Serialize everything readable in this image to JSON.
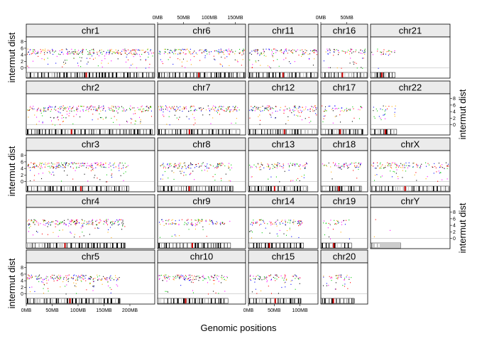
{
  "chart_data": {
    "type": "scatter",
    "title": "",
    "xlabel": "Genomic positions",
    "ylabel": "intermut dist",
    "y_ticks": [
      0,
      2,
      4,
      6,
      8
    ],
    "ylim": [
      -0.5,
      9
    ],
    "x_tick_sets": {
      "chr1": [
        "0MB",
        "50MB",
        "100MB",
        "150MB",
        "200MB"
      ],
      "chr6": [
        "0MB",
        "50MB",
        "100MB",
        "150MB"
      ],
      "chr11": [
        "0MB",
        "50MB",
        "100MB"
      ],
      "chr16": [
        "0MB",
        "50MB"
      ]
    },
    "series_colors": [
      "#ff0000",
      "#00cc00",
      "#0000ff",
      "#ff00ff",
      "#ffaa00",
      "#000000"
    ],
    "panels": [
      {
        "name": "chr1",
        "length_mb": 249,
        "density": 1.0
      },
      {
        "name": "chr6",
        "length_mb": 171,
        "density": 0.9
      },
      {
        "name": "chr11",
        "length_mb": 135,
        "density": 0.9
      },
      {
        "name": "chr16",
        "length_mb": 90,
        "density": 0.7
      },
      {
        "name": "chr21",
        "length_mb": 48,
        "density": 0.5
      },
      {
        "name": "chr2",
        "length_mb": 243,
        "density": 1.0
      },
      {
        "name": "chr7",
        "length_mb": 159,
        "density": 0.9
      },
      {
        "name": "chr12",
        "length_mb": 133,
        "density": 0.9
      },
      {
        "name": "chr17",
        "length_mb": 81,
        "density": 0.6
      },
      {
        "name": "chr22",
        "length_mb": 51,
        "density": 0.5
      },
      {
        "name": "chr3",
        "length_mb": 198,
        "density": 1.0
      },
      {
        "name": "chr8",
        "length_mb": 146,
        "density": 0.9
      },
      {
        "name": "chr13",
        "length_mb": 115,
        "density": 0.8
      },
      {
        "name": "chr18",
        "length_mb": 78,
        "density": 0.7
      },
      {
        "name": "chrX",
        "length_mb": 155,
        "density": 0.8
      },
      {
        "name": "chr4",
        "length_mb": 191,
        "density": 1.0
      },
      {
        "name": "chr9",
        "length_mb": 141,
        "density": 0.7
      },
      {
        "name": "chr14",
        "length_mb": 107,
        "density": 0.8
      },
      {
        "name": "chr19",
        "length_mb": 59,
        "density": 0.5
      },
      {
        "name": "chrY",
        "length_mb": 59,
        "density": 0.05
      },
      {
        "name": "chr5",
        "length_mb": 181,
        "density": 1.0
      },
      {
        "name": "chr10",
        "length_mb": 136,
        "density": 0.9
      },
      {
        "name": "chr15",
        "length_mb": 102,
        "density": 0.8
      },
      {
        "name": "chr20",
        "length_mb": 64,
        "density": 0.6
      }
    ]
  }
}
